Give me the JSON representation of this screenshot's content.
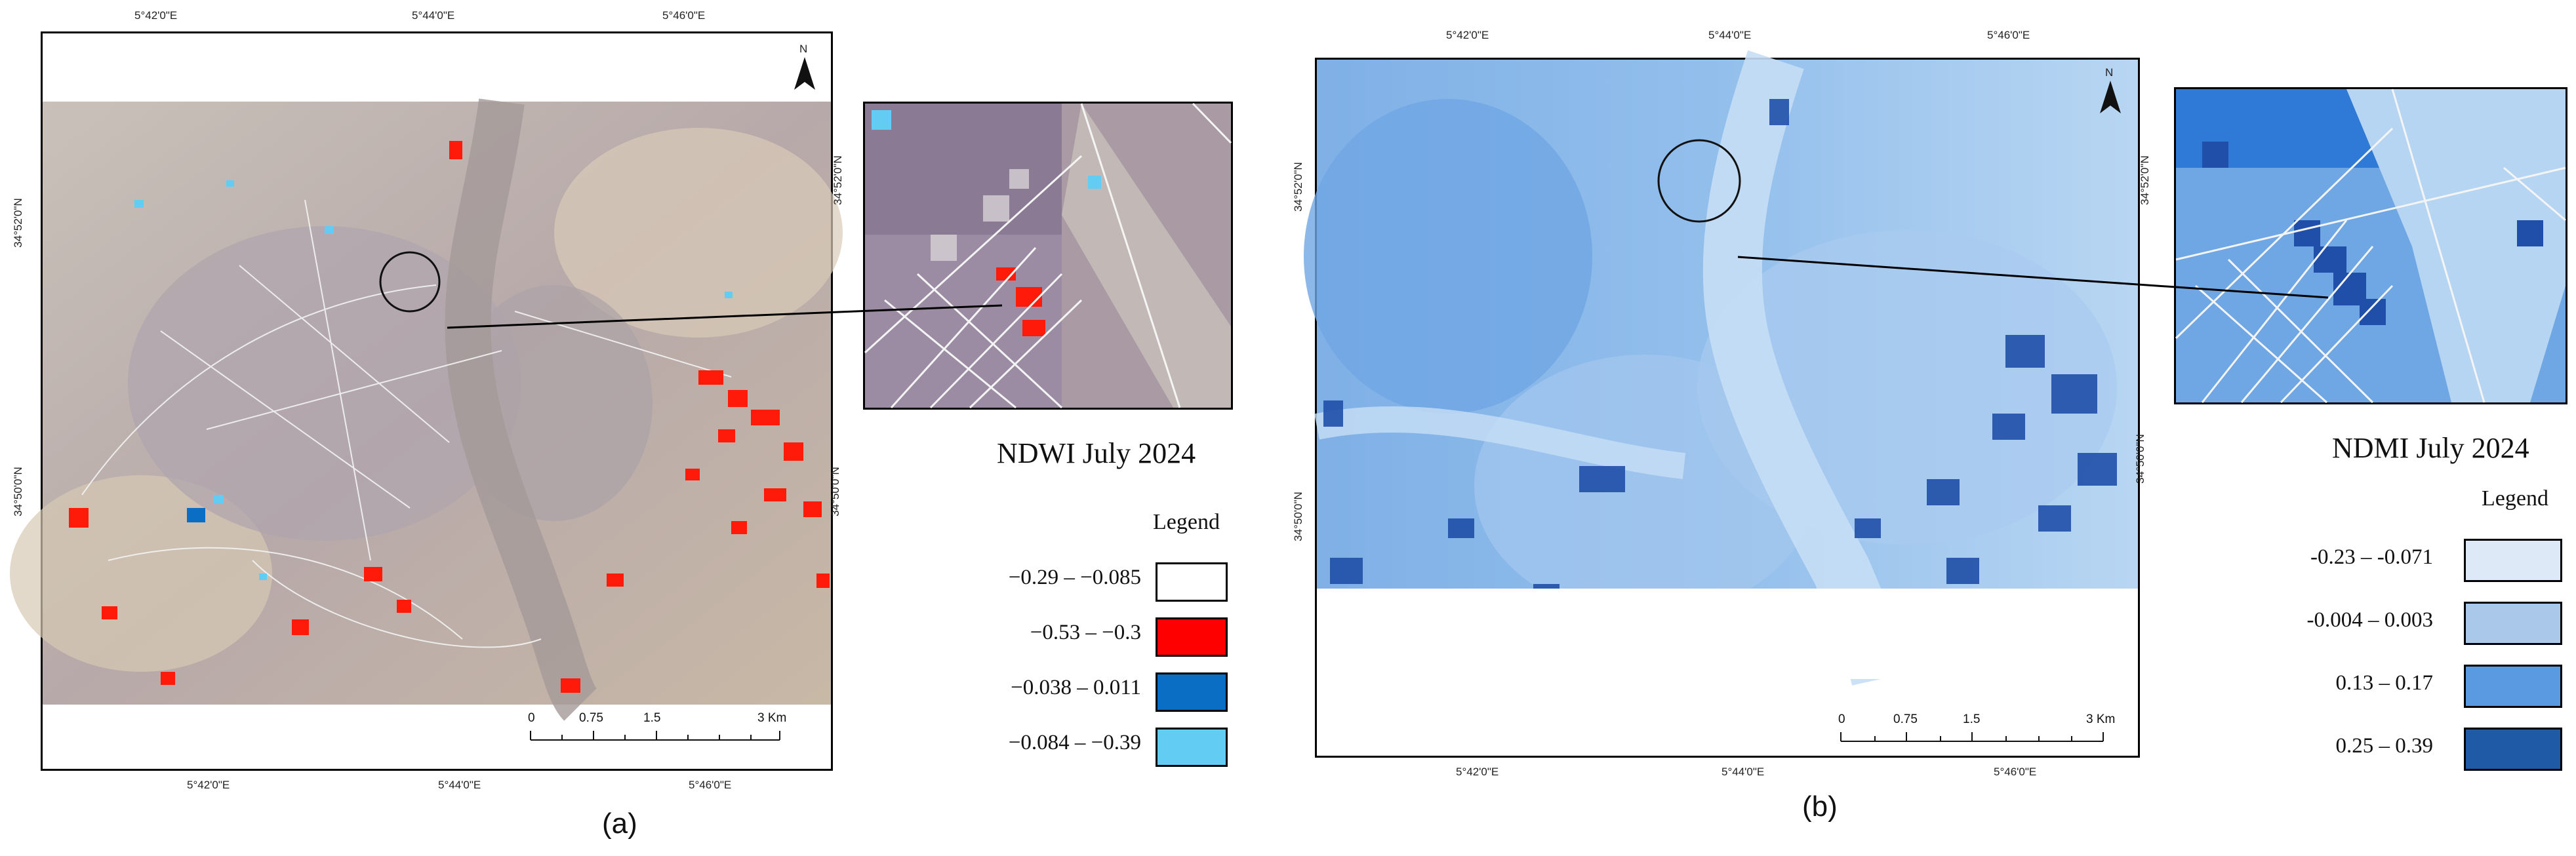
{
  "panel_a": {
    "label": "(a)",
    "north": "N",
    "top_ticks": [
      "5°42'0\"E",
      "5°44'0\"E",
      "5°46'0\"E"
    ],
    "bottom_ticks": [
      "5°42'0\"E",
      "5°44'0\"E",
      "5°46'0\"E"
    ],
    "left_ticks": [
      "34°52'0\"N",
      "34°50'0\"N"
    ],
    "inset_right_ticks": [
      "34°52'0\"N"
    ],
    "right_ticks": [
      "34°50'0\"N"
    ],
    "scale": {
      "marks": [
        "0",
        "0.75",
        "1.5",
        "3 Km"
      ]
    },
    "map_title": "NDWI July 2024",
    "legend_heading": "Legend",
    "legend": [
      {
        "label": "−0.29 – −0.085",
        "color": "#ffffff"
      },
      {
        "label": "−0.53 – −0.3",
        "color": "#ff0000"
      },
      {
        "label": "−0.038 – 0.011",
        "color": "#0a6fc4"
      },
      {
        "label": "−0.084 – −0.39",
        "color": "#62ccf3"
      }
    ]
  },
  "panel_b": {
    "label": "(b)",
    "north": "N",
    "top_ticks": [
      "5°42'0\"E",
      "5°44'0\"E",
      "5°46'0\"E"
    ],
    "bottom_ticks": [
      "5°42'0\"E",
      "5°44'0\"E",
      "5°46'0\"E"
    ],
    "left_ticks": [
      "34°52'0\"N",
      "34°50'0\"N"
    ],
    "inset_right_ticks": [
      "34°52'0\"N"
    ],
    "right_ticks": [
      "34°50'0\"N"
    ],
    "scale": {
      "marks": [
        "0",
        "0.75",
        "1.5",
        "3 Km"
      ]
    },
    "map_title": "NDMI July 2024",
    "legend_heading": "Legend",
    "legend": [
      {
        "label": "-0.23 – -0.071",
        "color": "#dde9f7"
      },
      {
        "label": "-0.004 – 0.003",
        "color": "#a9c8ea"
      },
      {
        "label": "0.13 – 0.17",
        "color": "#5a9ae0"
      },
      {
        "label": "0.25 – 0.39",
        "color": "#1f5aa6"
      }
    ]
  }
}
